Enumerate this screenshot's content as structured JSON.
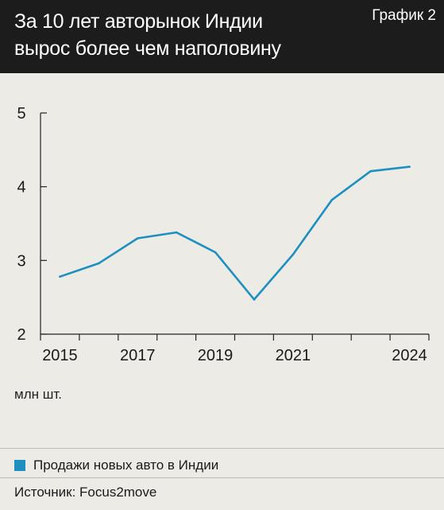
{
  "header": {
    "title_line1": "За 10 лет авторынок Индии",
    "title_line2": "вырос более чем наполовину",
    "badge": "График 2"
  },
  "unit_label": "млн шт.",
  "source": "Источник: Focus2move",
  "colors": {
    "header_bg": "#1c1c1c",
    "background": "#ecebe6",
    "series": "#1e90c0",
    "axis": "#222222"
  },
  "chart_data": {
    "type": "line",
    "x": [
      2015,
      2016,
      2017,
      2018,
      2019,
      2020,
      2021,
      2022,
      2023,
      2024
    ],
    "series": [
      {
        "name": "Продажи новых авто в Индии",
        "values": [
          2.78,
          2.96,
          3.3,
          3.38,
          3.11,
          2.47,
          3.08,
          3.82,
          4.21,
          4.27
        ]
      }
    ],
    "x_tick_labels": [
      "2015",
      "2017",
      "2019",
      "2021",
      "2024"
    ],
    "y_tick_labels": [
      "2",
      "3",
      "4",
      "5"
    ],
    "ylim": [
      2,
      5
    ],
    "xlim": [
      2014.5,
      2024.5
    ],
    "ylabel": "млн шт.",
    "legend_position": "bottom",
    "grid": false
  }
}
